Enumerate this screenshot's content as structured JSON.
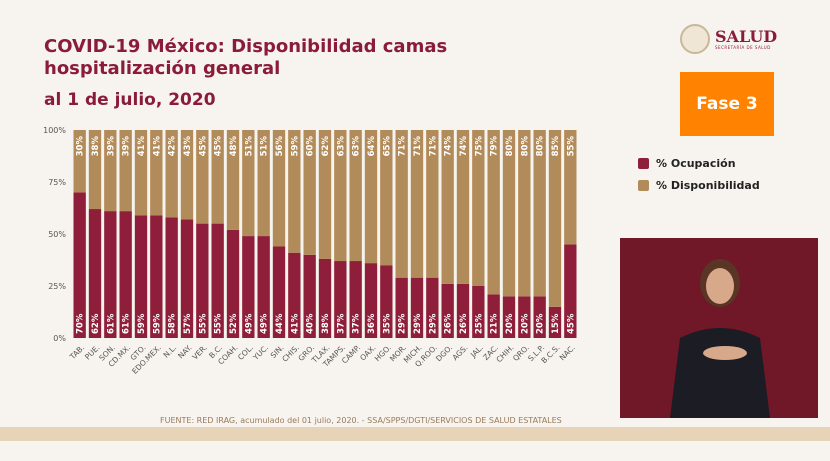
{
  "header": {
    "title": "COVID-19 México: Disponibilidad camas hospitalización general",
    "subtitle": "al 1 de julio, 2020"
  },
  "logo": {
    "name": "SALUD",
    "sub": "SECRETARÍA DE SALUD"
  },
  "phase_badge": {
    "label": "Fase 3",
    "color": "#ff8200"
  },
  "footer": {
    "source": "FUENTE: RED IRAG, acumulado del 01 julio, 2020. -  SSA/SPPS/DGTI/SERVICIOS DE SALUD ESTATALES"
  },
  "chart_data": {
    "type": "bar",
    "stacked": true,
    "title": "",
    "ylim": [
      0,
      100
    ],
    "yticks": [
      "0%",
      "25%",
      "50%",
      "75%",
      "100%"
    ],
    "legend_position": "right",
    "categories": [
      "TAB.",
      "PUE.",
      "SON.",
      "CD.MX.",
      "GTO.",
      "EDO.MEX.",
      "N.L.",
      "NAY.",
      "VER.",
      "B.C.",
      "COAH.",
      "COL.",
      "YUC.",
      "SIN.",
      "CHIS.",
      "GRO.",
      "TLAX.",
      "TAMPS.",
      "CAMP.",
      "OAX.",
      "HGO.",
      "MOR.",
      "MICH.",
      "Q.ROO.",
      "DGO.",
      "AGS.",
      "JAL.",
      "ZAC.",
      "CHIH.",
      "QRO.",
      "S.L.P.",
      "B.C.S.",
      "NAC."
    ],
    "series": [
      {
        "name": "% Ocupación",
        "color": "#8e1e3a",
        "values": [
          70,
          62,
          61,
          61,
          59,
          59,
          58,
          57,
          55,
          55,
          52,
          49,
          49,
          44,
          41,
          40,
          38,
          37,
          37,
          36,
          35,
          29,
          29,
          29,
          26,
          26,
          25,
          21,
          20,
          20,
          20,
          15,
          45
        ]
      },
      {
        "name": "% Disponibilidad",
        "color": "#b28b5a",
        "values": [
          30,
          38,
          39,
          39,
          41,
          41,
          42,
          43,
          45,
          45,
          48,
          51,
          51,
          56,
          59,
          60,
          62,
          63,
          63,
          64,
          65,
          71,
          71,
          71,
          74,
          74,
          75,
          79,
          80,
          80,
          80,
          85,
          55
        ]
      }
    ]
  }
}
